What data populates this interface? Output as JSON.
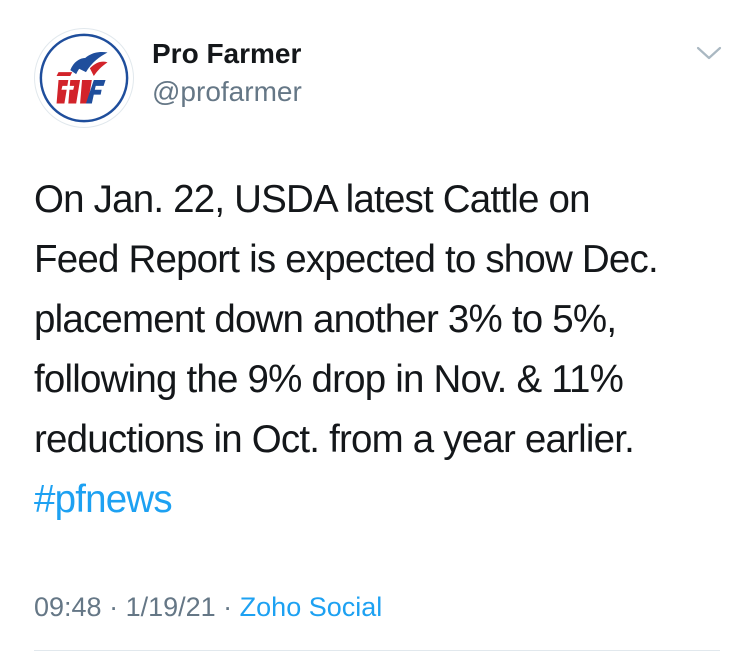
{
  "author": {
    "name": "Pro Farmer",
    "handle": "@profarmer",
    "avatar_icon": "pro-farmer-logo"
  },
  "tweet": {
    "lines": [
      "On Jan. 22, USDA latest Cattle on",
      "Feed Report is expected to show Dec.",
      "placement down another 3% to 5%,",
      "following the 9% drop in Nov. & 11%",
      "reductions in Oct. from a year earlier."
    ],
    "hashtag": "#pfnews"
  },
  "meta": {
    "time": "09:48",
    "sep1": " · ",
    "date": "1/19/21",
    "sep2": " · ",
    "source": "Zoho Social"
  },
  "colors": {
    "accent": "#1da1f2",
    "text": "#14171a",
    "muted": "#657786",
    "logo_red": "#d2232a",
    "logo_blue": "#1f4e9c"
  }
}
